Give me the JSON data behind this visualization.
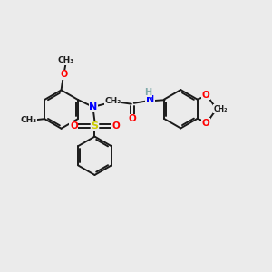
{
  "background_color": "#ebebeb",
  "bond_color": "#1a1a1a",
  "atom_colors": {
    "N": "#0000ff",
    "O": "#ff0000",
    "S": "#cccc00",
    "H": "#7faaaa",
    "C": "#1a1a1a"
  },
  "figsize": [
    3.0,
    3.0
  ],
  "dpi": 100,
  "xlim": [
    0,
    10
  ],
  "ylim": [
    0,
    10
  ]
}
